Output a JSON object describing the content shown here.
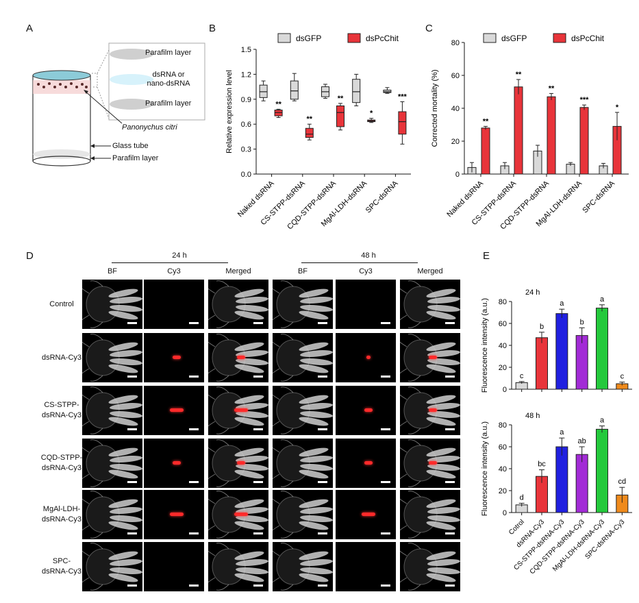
{
  "panels": {
    "A": "A",
    "B": "B",
    "C": "C",
    "D": "D",
    "E": "E"
  },
  "panelA": {
    "legend_top": "Parafilm layer",
    "legend_mid": "dsRNA or\nnano-dsRNA",
    "legend_bottom": "Parafilm layer",
    "species": "Panonychus citri",
    "glass_tube": "Glass tube",
    "parafilm_bottom": "Parafilm layer"
  },
  "colors": {
    "gray": "#d9d9d9",
    "red": "#e8343a",
    "blue": "#2020e0",
    "purple": "#a22bd6",
    "green": "#24c93c",
    "orange": "#ef8a1c"
  },
  "chart_data": [
    {
      "id": "B",
      "type": "box",
      "ylabel": "Relative expression level",
      "ylim": [
        0,
        1.5
      ],
      "yticks": [
        "0.0",
        "0.3",
        "0.6",
        "0.9",
        "1.2",
        "1.5"
      ],
      "categories": [
        "Naked dsRNA",
        "CS-STPP-dsRNA",
        "CQD-STPP-dsRNA",
        "MgAl-LDH-dsRNA",
        "SPC-dsRNA"
      ],
      "legend": [
        "dsGFP",
        "dsPcChit"
      ],
      "series": [
        {
          "name": "dsGFP",
          "boxes": [
            {
              "min": 0.88,
              "q1": 0.92,
              "median": 0.99,
              "q3": 1.07,
              "max": 1.12
            },
            {
              "min": 0.88,
              "q1": 0.9,
              "median": 1.0,
              "q3": 1.12,
              "max": 1.21
            },
            {
              "min": 0.91,
              "q1": 0.93,
              "median": 0.99,
              "q3": 1.05,
              "max": 1.08
            },
            {
              "min": 0.82,
              "q1": 0.86,
              "median": 0.99,
              "q3": 1.14,
              "max": 1.2
            },
            {
              "min": 0.97,
              "q1": 0.98,
              "median": 0.99,
              "q3": 1.01,
              "max": 1.04
            }
          ]
        },
        {
          "name": "dsPcChit",
          "boxes": [
            {
              "min": 0.68,
              "q1": 0.7,
              "median": 0.74,
              "q3": 0.77,
              "max": 0.78
            },
            {
              "min": 0.41,
              "q1": 0.44,
              "median": 0.48,
              "q3": 0.55,
              "max": 0.6
            },
            {
              "min": 0.53,
              "q1": 0.57,
              "median": 0.74,
              "q3": 0.82,
              "max": 0.85
            },
            {
              "min": 0.62,
              "q1": 0.63,
              "median": 0.64,
              "q3": 0.65,
              "max": 0.67
            },
            {
              "min": 0.36,
              "q1": 0.48,
              "median": 0.63,
              "q3": 0.75,
              "max": 0.87
            }
          ]
        }
      ],
      "significance": [
        "**",
        "**",
        "**",
        "*",
        "***"
      ]
    },
    {
      "id": "C",
      "type": "bar",
      "ylabel": "Corrected mortality (%)",
      "ylim": [
        0,
        80
      ],
      "yticks": [
        "0",
        "20",
        "40",
        "60",
        "80"
      ],
      "categories": [
        "Naked dsRNA",
        "CS-STPP-dsRNA",
        "CQD-STPP-dsRNA",
        "MgAl-LDH-dsRNA",
        "SPC-dsRNA"
      ],
      "legend": [
        "dsGFP",
        "dsPcChit"
      ],
      "series": [
        {
          "name": "dsGFP",
          "values": [
            4,
            5,
            14,
            6,
            5
          ],
          "errors": [
            3,
            2,
            3.5,
            1,
            1.5
          ]
        },
        {
          "name": "dsPcChit",
          "values": [
            28,
            53,
            47,
            40.5,
            29
          ],
          "errors": [
            1,
            4.5,
            2,
            1.5,
            8.5
          ]
        }
      ],
      "significance": [
        "**",
        "**",
        "**",
        "***",
        "*"
      ]
    },
    {
      "id": "E-24h",
      "type": "bar",
      "title": "24 h",
      "ylabel": "Fluorescence intensity (a.u.)",
      "ylim": [
        0,
        80
      ],
      "yticks": [
        "0",
        "20",
        "40",
        "60",
        "80"
      ],
      "categories": [
        "Cotrol",
        "dsRNA-Cy3",
        "CS-STPP-dsRNA-Cy3",
        "CQD-STPP-dsRNA-Cy3",
        "MgAl-LDH-dsRNA-Cy3",
        "SPC-dsRNA-Cy3"
      ],
      "values": [
        6,
        47,
        69,
        49,
        74,
        5
      ],
      "errors": [
        1,
        5,
        4,
        7,
        3,
        1.5
      ],
      "letters": [
        "c",
        "b",
        "a",
        "b",
        "a",
        "c"
      ]
    },
    {
      "id": "E-48h",
      "type": "bar",
      "title": "48 h",
      "ylabel": "Fluorescence intensity (a.u.)",
      "ylim": [
        0,
        80
      ],
      "yticks": [
        "0",
        "20",
        "40",
        "60",
        "80"
      ],
      "categories": [
        "Cotrol",
        "dsRNA-Cy3",
        "CS-STPP-dsRNA-Cy3",
        "CQD-STPP-dsRNA-Cy3",
        "MgAl-LDH-dsRNA-Cy3",
        "SPC-dsRNA-Cy3"
      ],
      "values": [
        7,
        33,
        60,
        53,
        76,
        16
      ],
      "errors": [
        1.5,
        6,
        8,
        7,
        3,
        7
      ],
      "letters": [
        "d",
        "bc",
        "a",
        "ab",
        "a",
        "cd"
      ]
    }
  ],
  "panelD": {
    "time_24": "24 h",
    "time_48": "48 h",
    "columns": [
      "BF",
      "Cy3",
      "Merged",
      "BF",
      "Cy3",
      "Merged"
    ],
    "rows": [
      {
        "label": "Control"
      },
      {
        "label": "dsRNA-Cy3"
      },
      {
        "label": "CS-STPP-\ndsRNA-Cy3"
      },
      {
        "label": "CQD-STPP-\ndsRNA-Cy3"
      },
      {
        "label": "MgAl-LDH-\ndsRNA-Cy3"
      },
      {
        "label": "SPC-\ndsRNA-Cy3"
      }
    ]
  }
}
